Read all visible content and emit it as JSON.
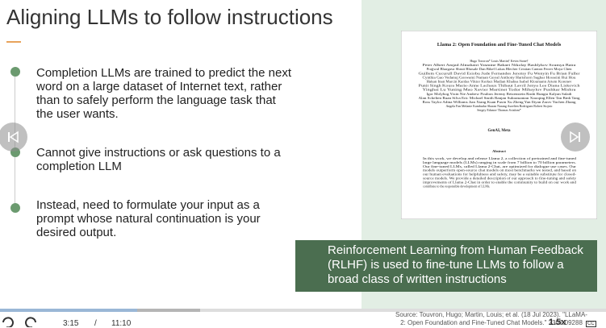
{
  "slide": {
    "title": "Aligning LLMs to follow instructions",
    "bullets": [
      "Completion LLMs are trained to predict the next word on a large dataset of Internet text, rather than to safely perform the language task that the user wants.",
      "Cannot give instructions or ask questions to a completion LLM",
      "Instead, need to formulate your input as a prompt whose natural continuation is your desired output."
    ]
  },
  "paper": {
    "title": "Llama 2: Open Foundation and Fine-Tuned Chat Models",
    "authors": [
      "Hugo Touvron* Louis Martin† Kevin Stone†",
      "Peter Albert Amjad Almahairi Yasmine Babaei Nikolay Bashlykov Soumya Batra",
      "Prajjwal Bhargava Shruti Bhosale Dan Bikel Lukas Blecher Cristian Canton Ferrer Moya Chen",
      "Guillem Cucurull David Esiobu Jude Fernandes Jeremy Fu Wenyin Fu Brian Fuller",
      "Cynthia Gao Vedanuj Goswami Naman Goyal Anthony Hartshorn Saghar Hosseini Rui Hou",
      "Hakan Inan Marcin Kardas Viktor Kerkez Madian Khabsa Isabel Kloumann Artem Korenev",
      "Punit Singh Koura Marie-Anne Lachaux Thibaut Lavril Jenya Lee Diana Liskovich",
      "Yinghai Lu Yuning Mao Xavier Martinet Todor Mihaylov Pushkar Mishra",
      "Igor Molybog Yixin Nie Andrew Poulton Jeremy Reizenstein Rashi Rungta Kalyan Saladi",
      "Alan Schelten Ruan Silva Eric Michael Smith Ranjan Subramanian Xiaoqing Ellen Tan Binh Tang",
      "Ross Taylor Adina Williams Jian Xiang Kuan Puxin Xu Zheng Yan Iliyan Zarov Yuchen Zhang",
      "Angela Fan Melanie Kambadur Sharan Narang Aurelien Rodriguez Robert Stojnic",
      "Sergey Edunov Thomas Scialom*"
    ],
    "affiliation": "GenAI, Meta",
    "abstract_heading": "Abstract",
    "abstract": [
      "In this work, we develop and release Llama 2, a collection of pretrained and fine-tuned",
      "large language models (LLMs) ranging in scale from 7 billion to 70 billion parameters.",
      "Our fine-tuned LLMs, called Llama 2-Chat, are optimized for dialogue use cases. Our",
      "models outperform open-source chat models on most benchmarks we tested, and based on",
      "our human evaluations for helpfulness and safety, may be a suitable substitute for closed-",
      "source models. We provide a detailed description of our approach to fine-tuning and safety",
      "improvements of Llama 2-Chat in order to enable the community to build on our work and",
      "contribute to the responsible development of LLMs."
    ]
  },
  "callout": "Reinforcement Learning from Human Feedback (RLHF) is used to fine-tune LLMs to follow a broad class of written instructions",
  "source": [
    "Source: Touvron, Hugo; Martin, Louis; et al. (18 Jul 2023). \"LLaMA-",
    "2: Open Foundation and Fine-Tuned Chat Models.\" 2307.09288"
  ],
  "player": {
    "current_time": "3:15",
    "separator": "/",
    "duration": "11:10",
    "speed": "1.5x",
    "captions": "CC"
  }
}
